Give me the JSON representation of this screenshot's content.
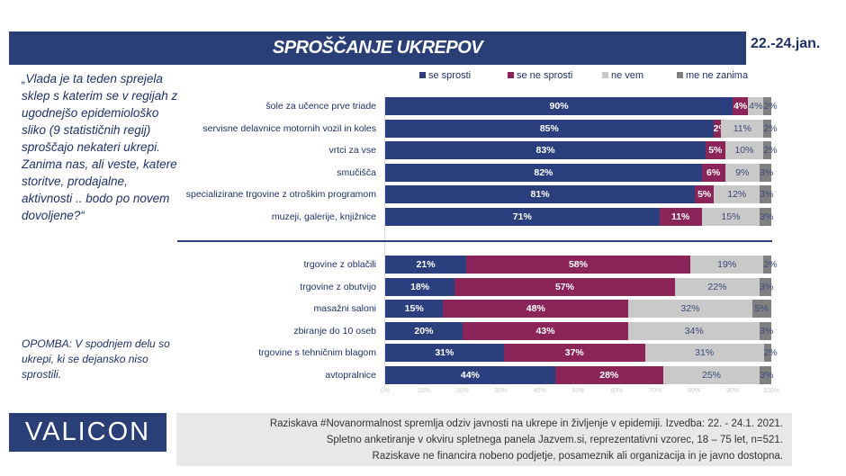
{
  "header": {
    "title": "SPROŠČANJE UKREPOV",
    "date": "22.-24.jan."
  },
  "question": "„Vlada je ta teden sprejela sklep s katerim se v regijah z ugodnejšo epidemiološko sliko (9 statističnih regij) sproščajo nekateri ukrepi. Zanima nas, ali veste, katere storitve, prodajalne, aktivnosti .. bodo po novem dovoljene?“",
  "note": "OPOMBA: V spodnjem delu so ukrepi, ki se dejansko niso sprostili.",
  "colors": {
    "se_sprosti": "#2b3f7e",
    "se_ne_sprosti": "#8a2459",
    "ne_vem": "#c9c9c9",
    "me_ne_zanima": "#808080"
  },
  "chart_data": {
    "type": "bar",
    "orientation": "horizontal-stacked-100",
    "xlim": [
      0,
      100
    ],
    "x_ticks": [
      "0%",
      "10%",
      "20%",
      "30%",
      "40%",
      "50%",
      "60%",
      "70%",
      "80%",
      "90%",
      "100%"
    ],
    "legend_position": "top",
    "series_names": [
      "se sprosti",
      "se ne sprosti",
      "ne vem",
      "me ne zanima"
    ],
    "groups": [
      {
        "rows": [
          {
            "category": "šole za učence prve triade",
            "values": [
              90,
              4,
              4,
              2
            ]
          },
          {
            "category": "servisne delavnice motornih vozil in koles",
            "values": [
              85,
              2,
              11,
              2
            ]
          },
          {
            "category": "vrtci za vse",
            "values": [
              83,
              5,
              10,
              2
            ]
          },
          {
            "category": "smučišča",
            "values": [
              82,
              6,
              9,
              3
            ]
          },
          {
            "category": "specializirane trgovine z otroškim programom",
            "values": [
              81,
              5,
              12,
              3
            ]
          },
          {
            "category": "muzeji, galerije, knjižnice",
            "values": [
              71,
              11,
              15,
              3
            ]
          }
        ]
      },
      {
        "rows": [
          {
            "category": "trgovine z oblačili",
            "values": [
              21,
              58,
              19,
              2
            ]
          },
          {
            "category": "trgovine z obutvijo",
            "values": [
              18,
              57,
              22,
              3
            ]
          },
          {
            "category": "masažni saloni",
            "values": [
              15,
              48,
              32,
              5
            ]
          },
          {
            "category": "zbiranje do 10 oseb",
            "values": [
              20,
              43,
              34,
              3
            ]
          },
          {
            "category": "trgovine s tehničnim blagom",
            "values": [
              31,
              37,
              31,
              2
            ]
          },
          {
            "category": "avtopralnice",
            "values": [
              44,
              28,
              25,
              3
            ]
          }
        ]
      }
    ]
  },
  "footer": {
    "logo": "VALICON",
    "lines": [
      "Raziskava #Novanormalnost spremlja odziv javnosti na ukrepe in življenje v epidemiji. Izvedba: 22. - 24.1. 2021.",
      "Spletno anketiranje v okviru spletnega panela Jazvem.si, reprezentativni vzorec, 18 – 75 let, n=521.",
      "Raziskave ne financira nobeno podjetje, posameznik ali organizacija in je javno dostopna."
    ]
  }
}
